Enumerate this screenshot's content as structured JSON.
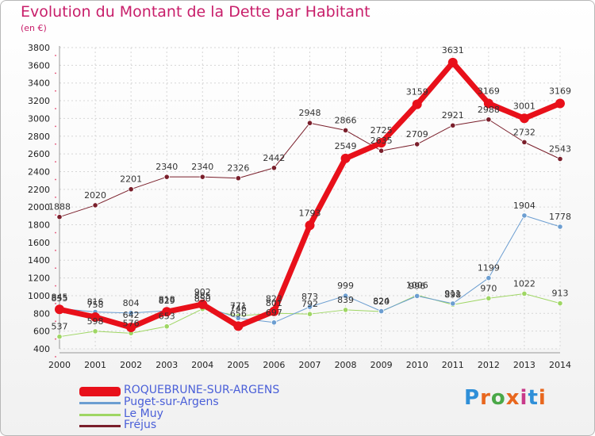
{
  "title": "Evolution du Montant de la Dette par Habitant",
  "subtitle": "(en €)",
  "logo": {
    "text": "Proxiti",
    "colors": [
      "#2f8fd8",
      "#e8671e",
      "#4aa848",
      "#e8671e",
      "#c83a8a",
      "#2f8fd8",
      "#e8671e"
    ]
  },
  "chart_data": {
    "type": "line",
    "x": [
      "2000",
      "2001",
      "2002",
      "2003",
      "2004",
      "2005",
      "2006",
      "2007",
      "2008",
      "2009",
      "2010",
      "2011",
      "2012",
      "2013",
      "2014"
    ],
    "ylim": [
      400,
      3800
    ],
    "yticks": [
      "400",
      "600",
      "800",
      "1000",
      "1200",
      "1400",
      "1600",
      "1800",
      "2000",
      "2200",
      "2400",
      "2600",
      "2800",
      "3000",
      "3200",
      "3400",
      "3600",
      "3800"
    ],
    "grid": true,
    "legend_position": "bottom",
    "series": [
      {
        "name": "Fréjus",
        "color": "#7a1f2b",
        "width": 1,
        "values": [
          1888,
          2020,
          2201,
          2340,
          2340,
          2326,
          2442,
          2948,
          2866,
          2635,
          2709,
          2921,
          2988,
          2732,
          2543
        ],
        "labels": [
          "1888",
          "2020",
          "2201",
          "2340",
          "2340",
          "2326",
          "2442",
          "2948",
          "2866",
          "2635",
          "2709",
          "2921",
          "2988",
          "2732",
          "2543"
        ]
      },
      {
        "name": "Le Muy",
        "color": "#9fd664",
        "width": 1,
        "values": [
          537,
          598,
          576,
          653,
          850,
          771,
          801,
          792,
          839,
          820,
          1006,
          898,
          970,
          1022,
          913
        ],
        "labels": [
          "537",
          "598",
          "576",
          "653",
          "850",
          "771",
          "801",
          "792",
          "839",
          "820",
          "1006",
          "898",
          "970",
          "1022",
          "913"
        ]
      },
      {
        "name": "Puget-sur-Argens",
        "color": "#6c9ed1",
        "width": 1,
        "values": [
          855,
          816,
          804,
          829,
          885,
          746,
          697,
          873,
          999,
          824,
          996,
          911,
          1199,
          1904,
          1778
        ],
        "labels": [
          "855",
          "816",
          "804",
          "829",
          "885",
          "746",
          "697",
          "873",
          "999",
          "824",
          "996",
          "911",
          "1199",
          "1904",
          "1778"
        ]
      },
      {
        "name": "ROQUEBRUNE-SUR-ARGENS",
        "color": "#e8101a",
        "width": 7,
        "values": [
          845,
          758,
          642,
          818,
          902,
          656,
          823,
          1793,
          2549,
          2725,
          3159,
          3631,
          3169,
          3001,
          3169
        ],
        "labels": [
          "845",
          "758",
          "642",
          "818",
          "902",
          "656",
          "823",
          "1793",
          "2549",
          "2725",
          "3159",
          "3631",
          "3169",
          "3001",
          "3169"
        ]
      }
    ]
  },
  "legend": [
    {
      "name": "ROQUEBRUNE-SUR-ARGENS",
      "color": "#e8101a",
      "text_color": "#4a5fd8",
      "thickness": 12
    },
    {
      "name": "Puget-sur-Argens",
      "color": "#6c9ed1",
      "text_color": "#4a5fd8",
      "thickness": 3
    },
    {
      "name": "Le Muy",
      "color": "#9fd664",
      "text_color": "#4a5fd8",
      "thickness": 3
    },
    {
      "name": "Fréjus",
      "color": "#7a1f2b",
      "text_color": "#4a5fd8",
      "thickness": 3
    }
  ]
}
